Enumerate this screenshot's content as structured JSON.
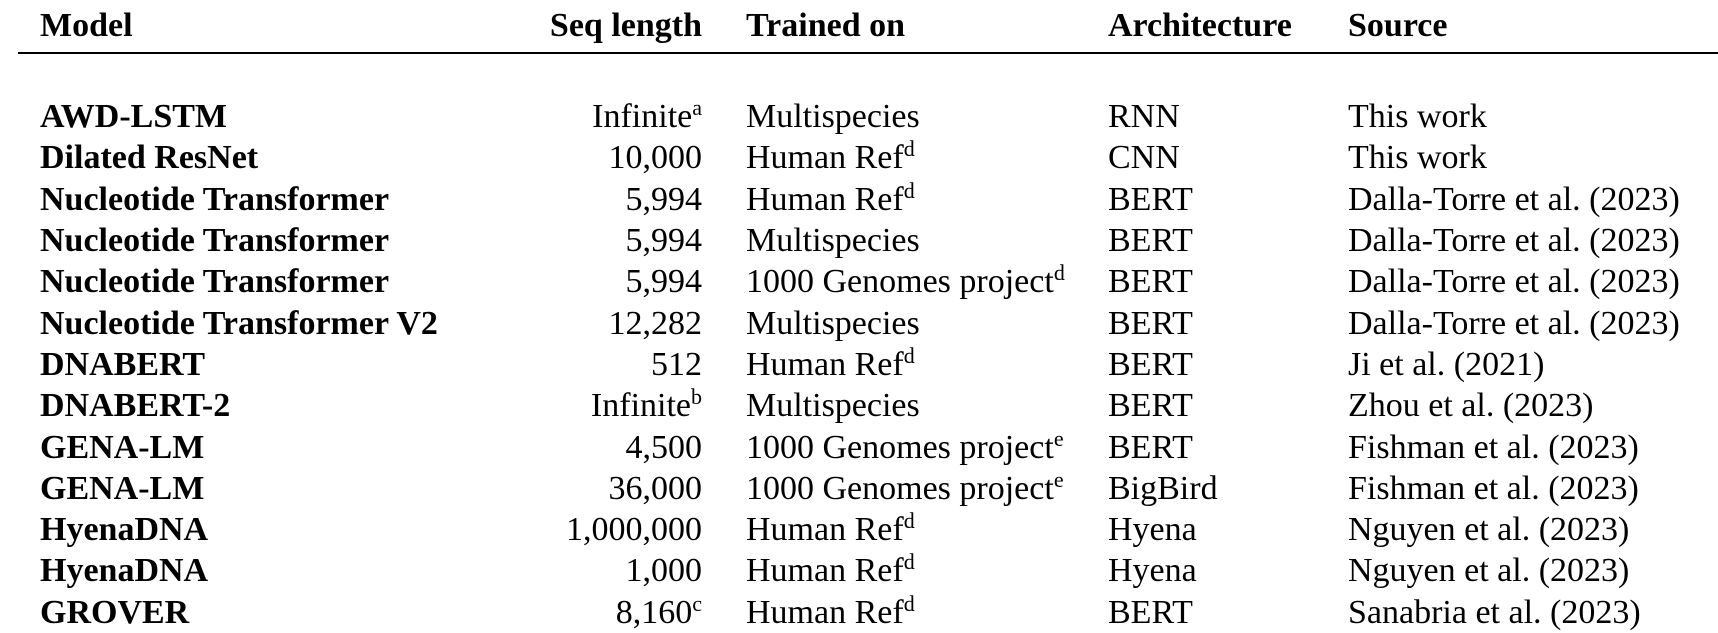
{
  "table": {
    "headers": {
      "model": "Model",
      "seq_length": "Seq length",
      "trained_on": "Trained on",
      "architecture": "Architecture",
      "source": "Source"
    },
    "rows": [
      {
        "model": "AWD-LSTM",
        "seq": "Infinite",
        "seq_note": "a",
        "trained": "Multispecies",
        "trained_note": "",
        "arch": "RNN",
        "source": "This work"
      },
      {
        "model": "Dilated ResNet",
        "seq": "10,000",
        "seq_note": "",
        "trained": "Human Ref",
        "trained_note": "d",
        "arch": "CNN",
        "source": "This work"
      },
      {
        "model": "Nucleotide Transformer",
        "seq": "5,994",
        "seq_note": "",
        "trained": "Human Ref",
        "trained_note": "d",
        "arch": "BERT",
        "source": "Dalla-Torre et al. (2023)"
      },
      {
        "model": "Nucleotide Transformer",
        "seq": "5,994",
        "seq_note": "",
        "trained": "Multispecies",
        "trained_note": "",
        "arch": "BERT",
        "source": "Dalla-Torre et al. (2023)"
      },
      {
        "model": "Nucleotide Transformer",
        "seq": "5,994",
        "seq_note": "",
        "trained": "1000 Genomes project",
        "trained_note": "d",
        "arch": "BERT",
        "source": "Dalla-Torre et al. (2023)"
      },
      {
        "model": "Nucleotide Transformer V2",
        "seq": "12,282",
        "seq_note": "",
        "trained": "Multispecies",
        "trained_note": "",
        "arch": "BERT",
        "source": "Dalla-Torre et al. (2023)"
      },
      {
        "model": "DNABERT",
        "seq": "512",
        "seq_note": "",
        "trained": "Human Ref",
        "trained_note": "d",
        "arch": "BERT",
        "source": "Ji et al. (2021)"
      },
      {
        "model": "DNABERT-2",
        "seq": "Infinite",
        "seq_note": "b",
        "trained": "Multispecies",
        "trained_note": "",
        "arch": "BERT",
        "source": "Zhou et al. (2023)"
      },
      {
        "model": "GENA-LM",
        "seq": "4,500",
        "seq_note": "",
        "trained": "1000 Genomes project",
        "trained_note": "e",
        "arch": "BERT",
        "source": "Fishman et al. (2023)"
      },
      {
        "model": "GENA-LM",
        "seq": "36,000",
        "seq_note": "",
        "trained": "1000 Genomes project",
        "trained_note": "e",
        "arch": "BigBird",
        "source": "Fishman et al. (2023)"
      },
      {
        "model": "HyenaDNA",
        "seq": "1,000,000",
        "seq_note": "",
        "trained": "Human Ref",
        "trained_note": "d",
        "arch": "Hyena",
        "source": "Nguyen et al. (2023)"
      },
      {
        "model": "HyenaDNA",
        "seq": "1,000",
        "seq_note": "",
        "trained": "Human Ref",
        "trained_note": "d",
        "arch": "Hyena",
        "source": "Nguyen et al. (2023)"
      },
      {
        "model": "GROVER",
        "seq": "8,160",
        "seq_note": "c",
        "trained": "Human Ref",
        "trained_note": "d",
        "arch": "BERT",
        "source": "Sanabria et al. (2023)"
      }
    ]
  }
}
